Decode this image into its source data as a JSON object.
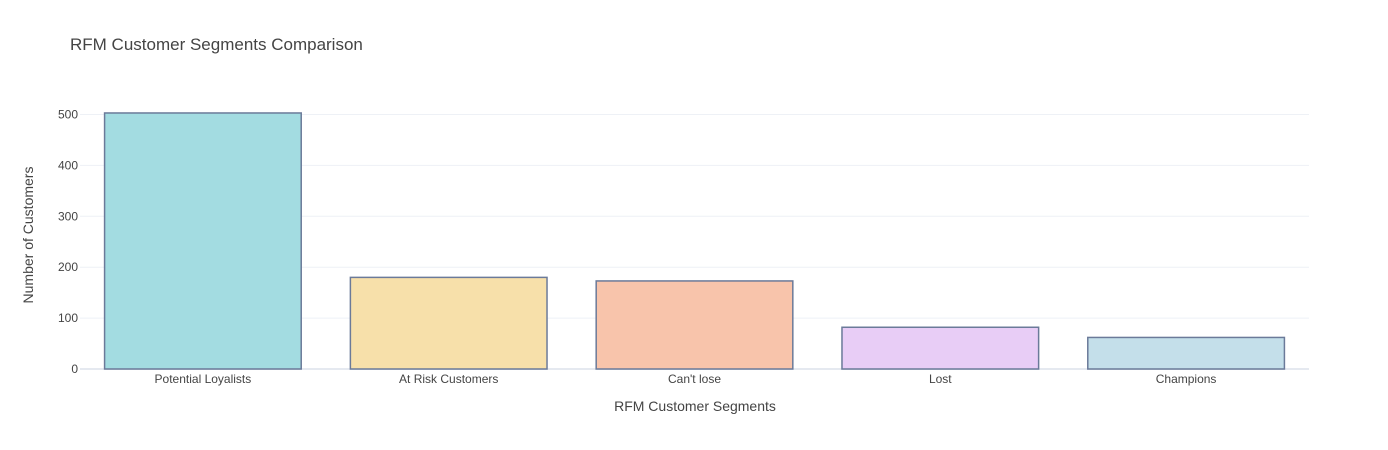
{
  "chart_data": {
    "type": "bar",
    "title": "RFM Customer Segments Comparison",
    "xlabel": "RFM Customer Segments",
    "ylabel": "Number of Customers",
    "categories": [
      "Potential Loyalists",
      "At Risk Customers",
      "Can't lose",
      "Lost",
      "Champions"
    ],
    "values": [
      503,
      180,
      173,
      82,
      62
    ],
    "colors": [
      "#a3dce1",
      "#f7e0aa",
      "#f8c4ab",
      "#e8cdf6",
      "#c4dfea"
    ],
    "bar_outline_color": "#6b7a99",
    "ylim": [
      0,
      530
    ],
    "yticks": [
      0,
      100,
      200,
      300,
      400,
      500
    ],
    "grid": true,
    "legend": "none"
  }
}
